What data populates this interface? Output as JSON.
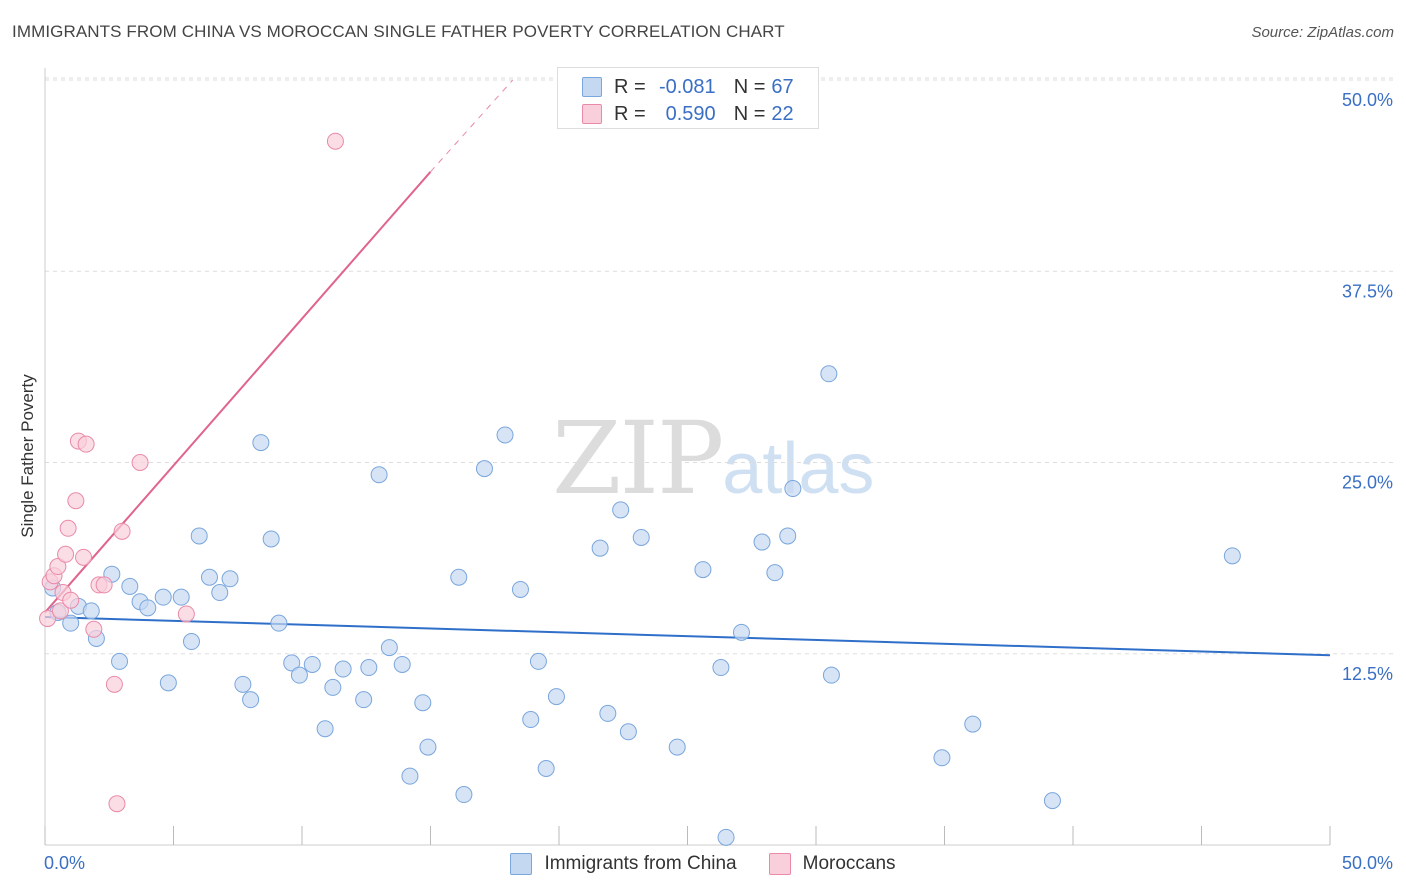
{
  "header": {
    "title": "IMMIGRANTS FROM CHINA VS MOROCCAN SINGLE FATHER POVERTY CORRELATION CHART",
    "source": "Source: ZipAtlas.com"
  },
  "watermark": {
    "zip": "ZIP",
    "atlas": "atlas"
  },
  "legend_top": {
    "rows": [
      {
        "r_label": "R =",
        "r_value": "-0.081",
        "n_label": "N =",
        "n_value": "67"
      },
      {
        "r_label": "R =",
        "r_value": "0.590",
        "n_label": "N =",
        "n_value": "22"
      }
    ]
  },
  "legend_bottom": {
    "items": [
      {
        "label": "Immigrants from China"
      },
      {
        "label": "Moroccans"
      }
    ]
  },
  "colors": {
    "china_fill": "#c4d8f2",
    "china_stroke": "#7aa6dc",
    "china_line": "#2f6fc9",
    "morocco_fill": "#f9cfdc",
    "morocco_stroke": "#e98aa8",
    "morocco_line": "#e0648c",
    "grid": "#dddddd",
    "tick_text": "#3a6fc4"
  },
  "chart_data": {
    "type": "scatter",
    "title": "IMMIGRANTS FROM CHINA VS MOROCCAN SINGLE FATHER POVERTY CORRELATION CHART",
    "xlabel": "",
    "ylabel": "Single Father Poverty",
    "xlim": [
      0,
      50
    ],
    "ylim": [
      0,
      50
    ],
    "x_tick_labels": [
      "0.0%",
      "50.0%"
    ],
    "y_ticks": [
      12.5,
      25.0,
      37.5,
      50.0
    ],
    "y_tick_labels": [
      "12.5%",
      "25.0%",
      "37.5%",
      "50.0%"
    ],
    "grid": "horizontal dashed",
    "legend_position": "top-center and bottom",
    "series": [
      {
        "name": "Immigrants from China",
        "points": [
          [
            0.3,
            16.8
          ],
          [
            0.5,
            15.2
          ],
          [
            1.0,
            14.5
          ],
          [
            1.3,
            15.6
          ],
          [
            1.8,
            15.3
          ],
          [
            2.0,
            13.5
          ],
          [
            2.6,
            17.7
          ],
          [
            2.9,
            12.0
          ],
          [
            3.3,
            16.9
          ],
          [
            3.7,
            15.9
          ],
          [
            4.0,
            15.5
          ],
          [
            4.6,
            16.2
          ],
          [
            4.8,
            10.6
          ],
          [
            5.3,
            16.2
          ],
          [
            5.7,
            13.3
          ],
          [
            6.0,
            20.2
          ],
          [
            6.4,
            17.5
          ],
          [
            6.8,
            16.5
          ],
          [
            7.2,
            17.4
          ],
          [
            7.7,
            10.5
          ],
          [
            8.0,
            9.5
          ],
          [
            8.4,
            26.3
          ],
          [
            8.8,
            20.0
          ],
          [
            9.1,
            14.5
          ],
          [
            9.6,
            11.9
          ],
          [
            9.9,
            11.1
          ],
          [
            10.4,
            11.8
          ],
          [
            10.9,
            7.6
          ],
          [
            11.2,
            10.3
          ],
          [
            11.6,
            11.5
          ],
          [
            12.4,
            9.5
          ],
          [
            12.6,
            11.6
          ],
          [
            13.0,
            24.2
          ],
          [
            13.4,
            12.9
          ],
          [
            13.9,
            11.8
          ],
          [
            14.2,
            4.5
          ],
          [
            14.7,
            9.3
          ],
          [
            14.9,
            6.4
          ],
          [
            16.1,
            17.5
          ],
          [
            16.3,
            3.3
          ],
          [
            17.1,
            24.6
          ],
          [
            17.9,
            26.8
          ],
          [
            18.5,
            16.7
          ],
          [
            18.9,
            8.2
          ],
          [
            19.2,
            12.0
          ],
          [
            19.5,
            5.0
          ],
          [
            19.9,
            9.7
          ],
          [
            21.6,
            19.4
          ],
          [
            21.9,
            8.6
          ],
          [
            22.4,
            21.9
          ],
          [
            22.7,
            7.4
          ],
          [
            23.2,
            20.1
          ],
          [
            24.6,
            6.4
          ],
          [
            25.6,
            18.0
          ],
          [
            26.3,
            11.6
          ],
          [
            26.5,
            0.5
          ],
          [
            27.1,
            13.9
          ],
          [
            27.9,
            19.8
          ],
          [
            28.4,
            17.8
          ],
          [
            28.9,
            20.2
          ],
          [
            29.1,
            23.3
          ],
          [
            30.5,
            30.8
          ],
          [
            30.6,
            11.1
          ],
          [
            34.9,
            5.7
          ],
          [
            36.1,
            7.9
          ],
          [
            39.2,
            2.9
          ],
          [
            46.2,
            18.9
          ]
        ]
      },
      {
        "name": "Moroccans",
        "points": [
          [
            0.1,
            14.8
          ],
          [
            0.2,
            17.2
          ],
          [
            0.35,
            17.6
          ],
          [
            0.5,
            18.2
          ],
          [
            0.6,
            15.3
          ],
          [
            0.7,
            16.5
          ],
          [
            0.8,
            19.0
          ],
          [
            0.9,
            20.7
          ],
          [
            1.0,
            16.0
          ],
          [
            1.2,
            22.5
          ],
          [
            1.3,
            26.4
          ],
          [
            1.5,
            18.8
          ],
          [
            1.6,
            26.2
          ],
          [
            1.9,
            14.1
          ],
          [
            2.1,
            17.0
          ],
          [
            2.3,
            17.0
          ],
          [
            2.7,
            10.5
          ],
          [
            2.8,
            2.7
          ],
          [
            3.0,
            20.5
          ],
          [
            3.7,
            25.0
          ],
          [
            5.5,
            15.1
          ],
          [
            11.3,
            46.0
          ]
        ]
      }
    ],
    "trend_lines": [
      {
        "series": "Immigrants from China",
        "from": [
          0,
          14.9
        ],
        "to": [
          50,
          12.4
        ]
      },
      {
        "series": "Moroccans",
        "from": [
          0,
          15.2
        ],
        "to": [
          15,
          44.0
        ],
        "dashed_to": [
          18.2,
          50.0
        ]
      }
    ]
  }
}
